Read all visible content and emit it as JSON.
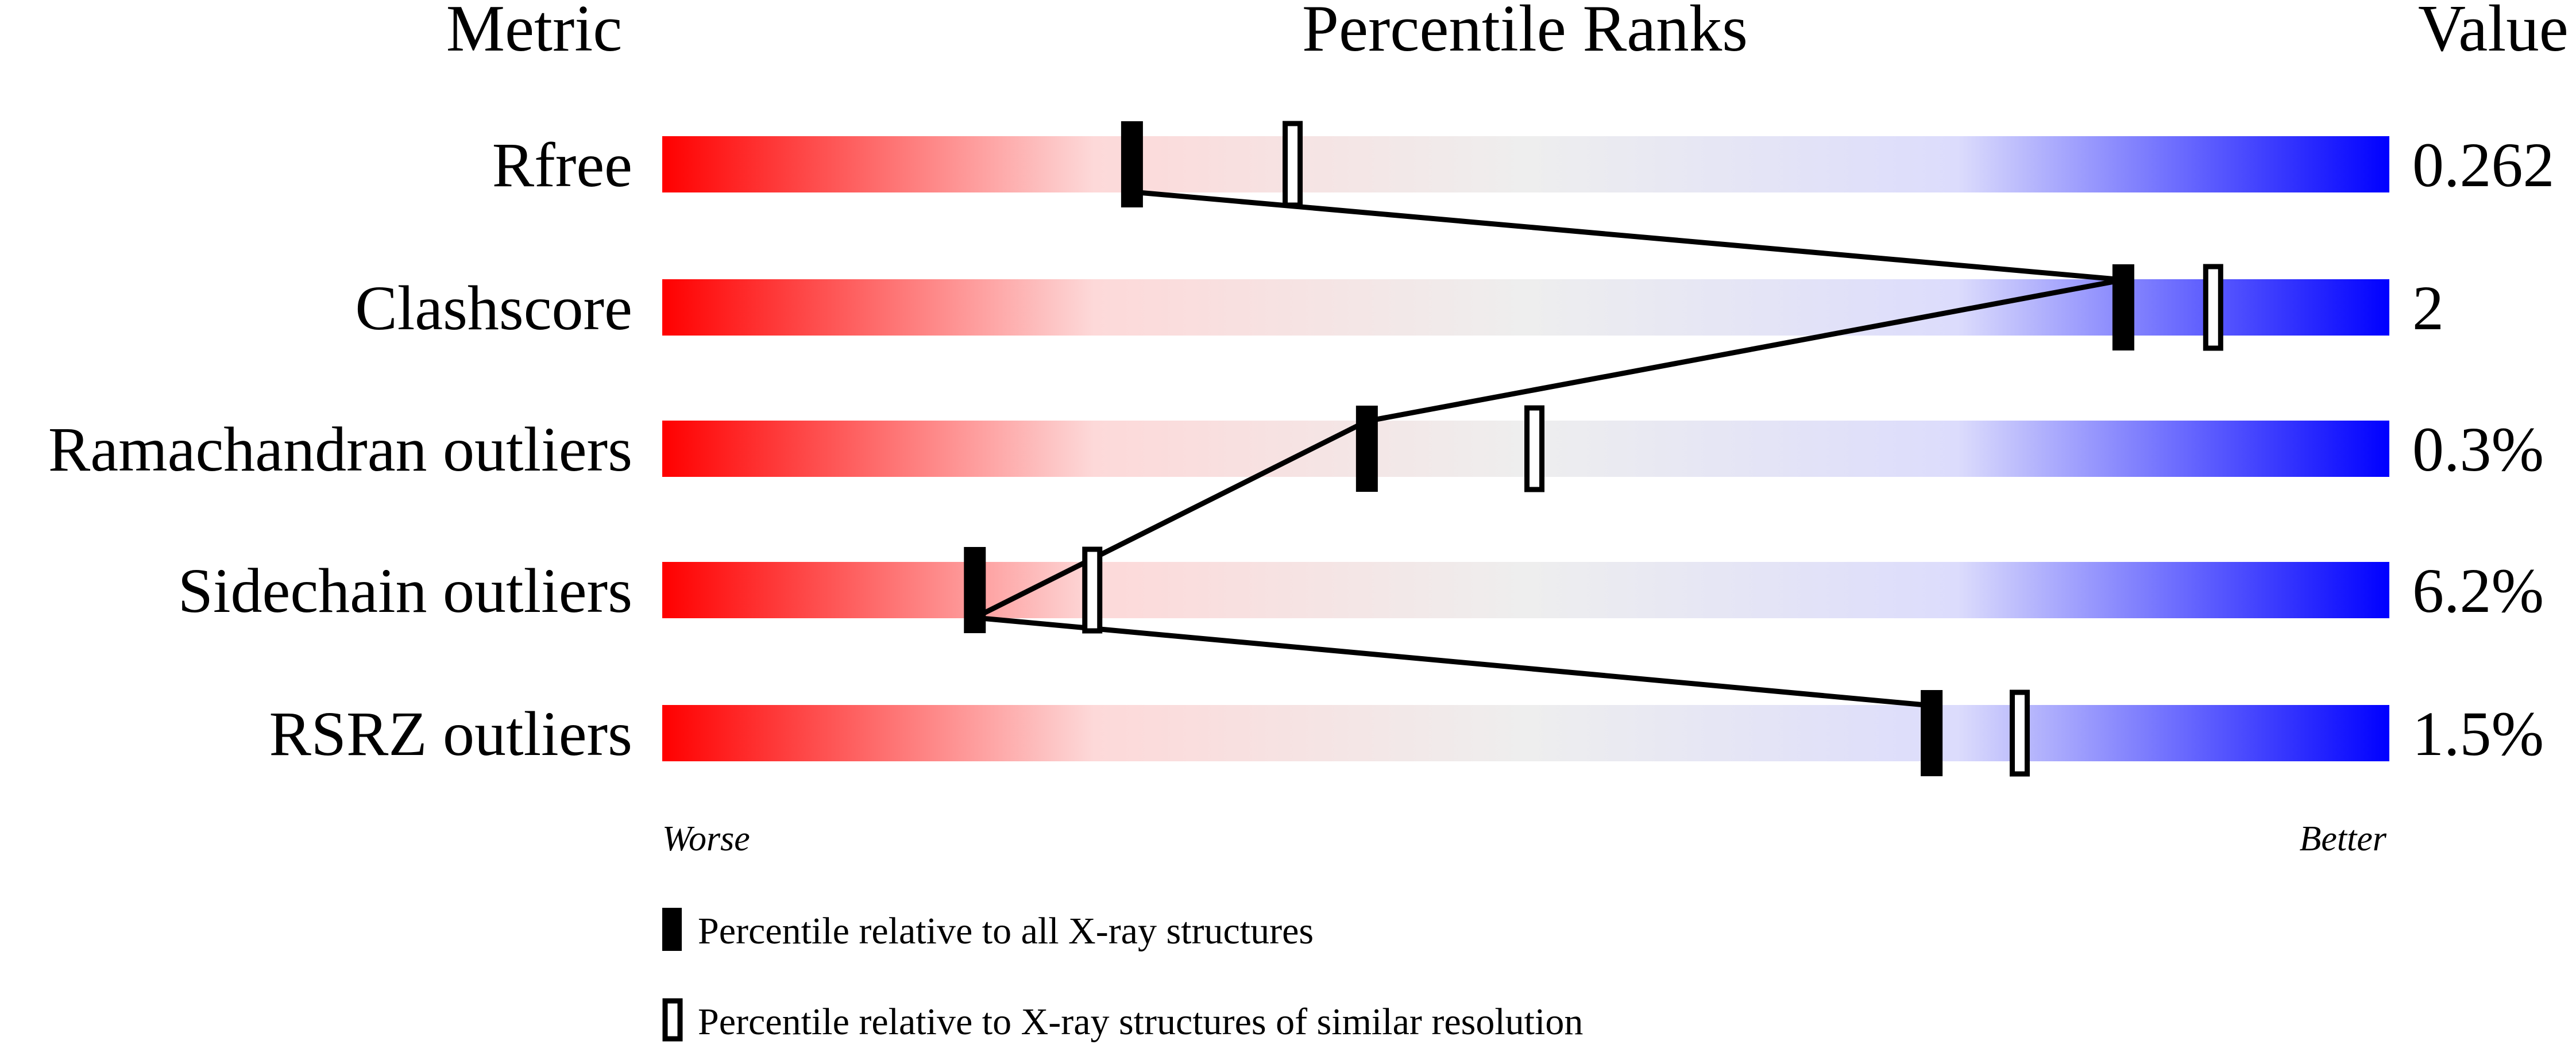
{
  "chart_data": {
    "type": "percentile-bar",
    "headers": {
      "metric": "Metric",
      "ranks": "Percentile Ranks",
      "value": "Value"
    },
    "xlim": [
      0,
      100
    ],
    "axis_labels": {
      "left": "Worse",
      "right": "Better"
    },
    "gradient_colors": [
      "#ff0000",
      "#fdd9d9",
      "#eeeeee",
      "#dcdcfc",
      "#0000ff"
    ],
    "metrics": [
      {
        "name": "Rfree",
        "value": "0.262",
        "percentile_all": 27.2,
        "percentile_similar": 36.5
      },
      {
        "name": "Clashscore",
        "value": "2",
        "percentile_all": 84.6,
        "percentile_similar": 89.8
      },
      {
        "name": "Ramachandran outliers",
        "value": "0.3%",
        "percentile_all": 40.8,
        "percentile_similar": 50.5
      },
      {
        "name": "Sidechain outliers",
        "value": "6.2%",
        "percentile_all": 18.1,
        "percentile_similar": 24.9
      },
      {
        "name": "RSRZ outliers",
        "value": "1.5%",
        "percentile_all": 73.5,
        "percentile_similar": 78.6
      }
    ],
    "legend": [
      {
        "marker": "filled",
        "label": "Percentile relative to all X-ray structures"
      },
      {
        "marker": "open",
        "label": "Percentile relative to X-ray structures of similar resolution"
      }
    ]
  }
}
